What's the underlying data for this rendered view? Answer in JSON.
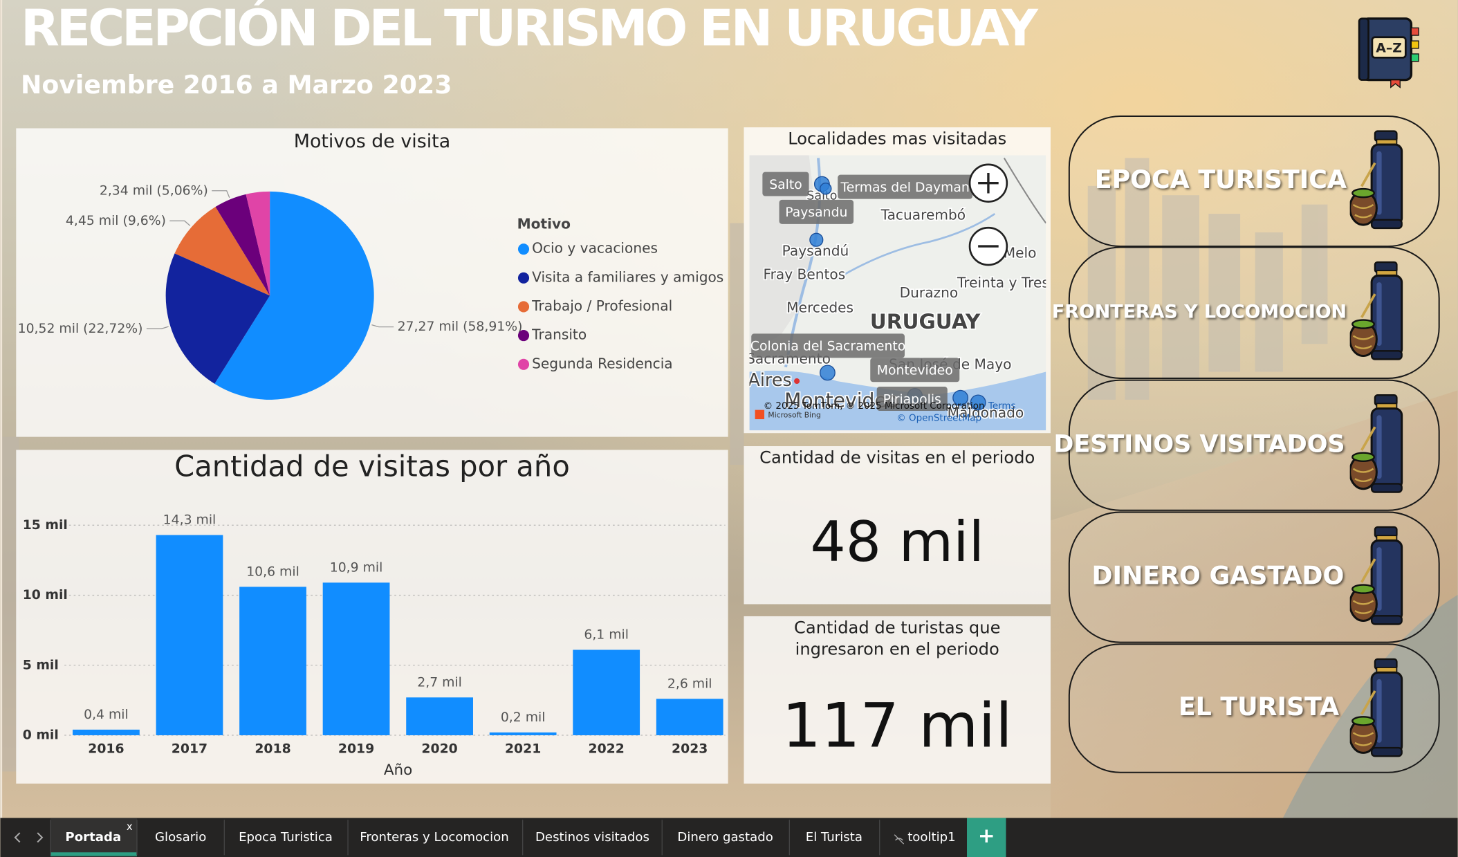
{
  "header": {
    "title": "RECEPCIÓN DEL TURISMO EN URUGUAY",
    "subtitle": "Noviembre 2016 a Marzo 2023",
    "icon_label": "A–Z"
  },
  "chart_data": [
    {
      "type": "pie",
      "title": "Motivos de visita",
      "legend_title": "Motivo",
      "categories": [
        "Ocio y vacaciones",
        "Visita a familiares y amigos",
        "Trabajo / Profesional",
        "Transito",
        "Segunda Residencia"
      ],
      "values": [
        27.27,
        10.52,
        4.45,
        2.34,
        1.71
      ],
      "value_labels": [
        "27,27 mil (58,91%)",
        "10,52 mil (22,72%)",
        "4,45 mil (9,6%)",
        "2,34 mil (5,06%)",
        null
      ],
      "colors": [
        "#118DFF",
        "#12239E",
        "#E66C37",
        "#6B007B",
        "#E044A7"
      ]
    },
    {
      "type": "bar",
      "title": "Cantidad de visitas por año",
      "x_label": "Año",
      "categories": [
        "2016",
        "2017",
        "2018",
        "2019",
        "2020",
        "2021",
        "2022",
        "2023"
      ],
      "values": [
        0.4,
        14.3,
        10.6,
        10.9,
        2.7,
        0.2,
        6.1,
        2.6
      ],
      "value_labels": [
        "0,4 mil",
        "14,3 mil",
        "10,6 mil",
        "10,9 mil",
        "2,7 mil",
        "0,2 mil",
        "6,1 mil",
        "2,6 mil"
      ],
      "color": "#118DFF",
      "ylim": [
        0,
        16
      ],
      "yticks": [
        {
          "value": 0,
          "label": "0 mil"
        },
        {
          "value": 5,
          "label": "5 mil"
        },
        {
          "value": 10,
          "label": "10 mil"
        },
        {
          "value": 15,
          "label": "15 mil"
        }
      ],
      "grid": true
    }
  ],
  "map": {
    "title": "Localidades mas visitadas",
    "tooltips": [
      "Salto",
      "Termas del Dayman",
      "Paysandu",
      "Colonia del Sacramento",
      "Montevideo",
      "Piriapolis"
    ],
    "places": [
      "Salto",
      "Tacuarembó",
      "Paysandú",
      "Melo",
      "Fray Bentos",
      "Treinta y Tres",
      "Durazno",
      "Mercedes",
      "URUGUAY",
      "Sacramento",
      "San José de Mayo",
      "Aires",
      "Montevideo",
      "Maldonado"
    ],
    "attribution": "© 2025 TomTom, © 2025 Microsoft Corporation",
    "terms": "Terms",
    "osm": "© OpenStreetMap",
    "provider": "Microsoft Bing"
  },
  "kpis": [
    {
      "title": [
        "Cantidad de visitas en el periodo"
      ],
      "value": "48 mil"
    },
    {
      "title": [
        "Cantidad de turistas que",
        "ingresaron en el periodo"
      ],
      "value": "117 mil"
    }
  ],
  "nav_buttons": [
    "EPOCA TURISTICA",
    "FRONTERAS Y LOCOMOCION",
    "DESTINOS VISITADOS",
    "DINERO GASTADO",
    "EL TURISTA"
  ],
  "tabs": {
    "items": [
      "Portada",
      "Glosario",
      "Epoca Turistica",
      "Fronteras y Locomocion",
      "Destinos visitados",
      "Dinero gastado",
      "El Turista",
      "tooltip1"
    ],
    "close_label": "x",
    "add_label": "+"
  }
}
